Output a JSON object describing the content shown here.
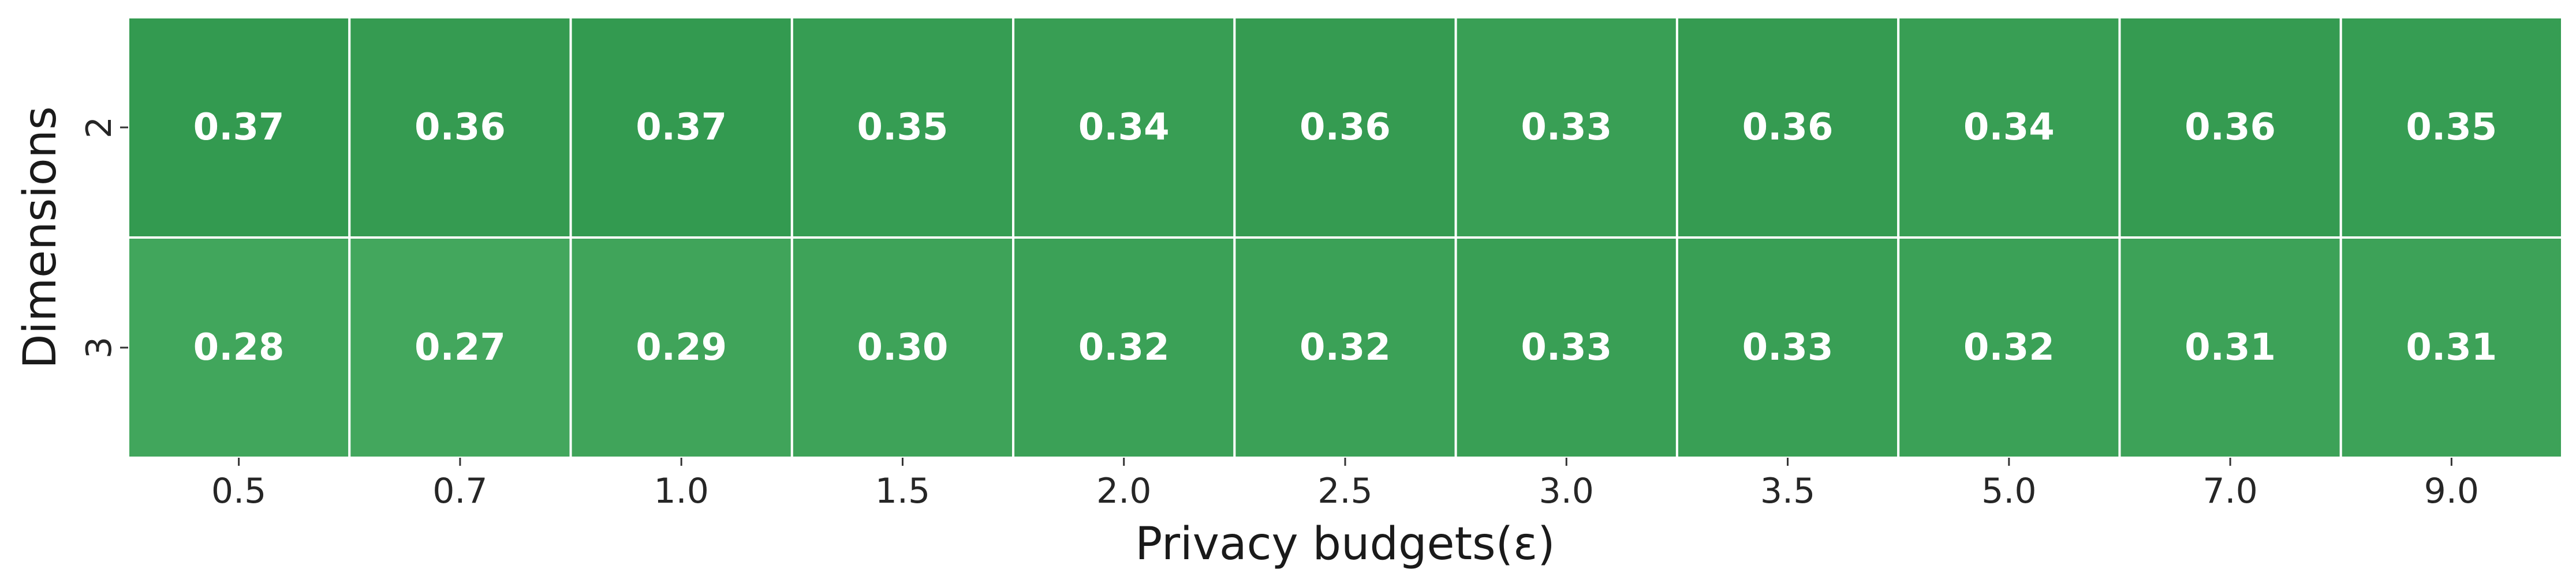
{
  "chart_data": {
    "type": "heatmap",
    "xlabel": "Privacy budgets(ε)",
    "ylabel": "Dimensions",
    "x": [
      "0.5",
      "0.7",
      "1.0",
      "1.5",
      "2.0",
      "2.5",
      "3.0",
      "3.5",
      "5.0",
      "7.0",
      "9.0"
    ],
    "y": [
      "2",
      "3"
    ],
    "values": [
      [
        0.37,
        0.36,
        0.37,
        0.35,
        0.34,
        0.36,
        0.33,
        0.36,
        0.34,
        0.36,
        0.35
      ],
      [
        0.28,
        0.27,
        0.29,
        0.3,
        0.32,
        0.32,
        0.33,
        0.33,
        0.32,
        0.31,
        0.31
      ]
    ],
    "colormap": {
      "low": "#43a75d",
      "high": "#339a50"
    },
    "cell_text_color": "#ffffff",
    "colorbar": false,
    "grid": false
  }
}
